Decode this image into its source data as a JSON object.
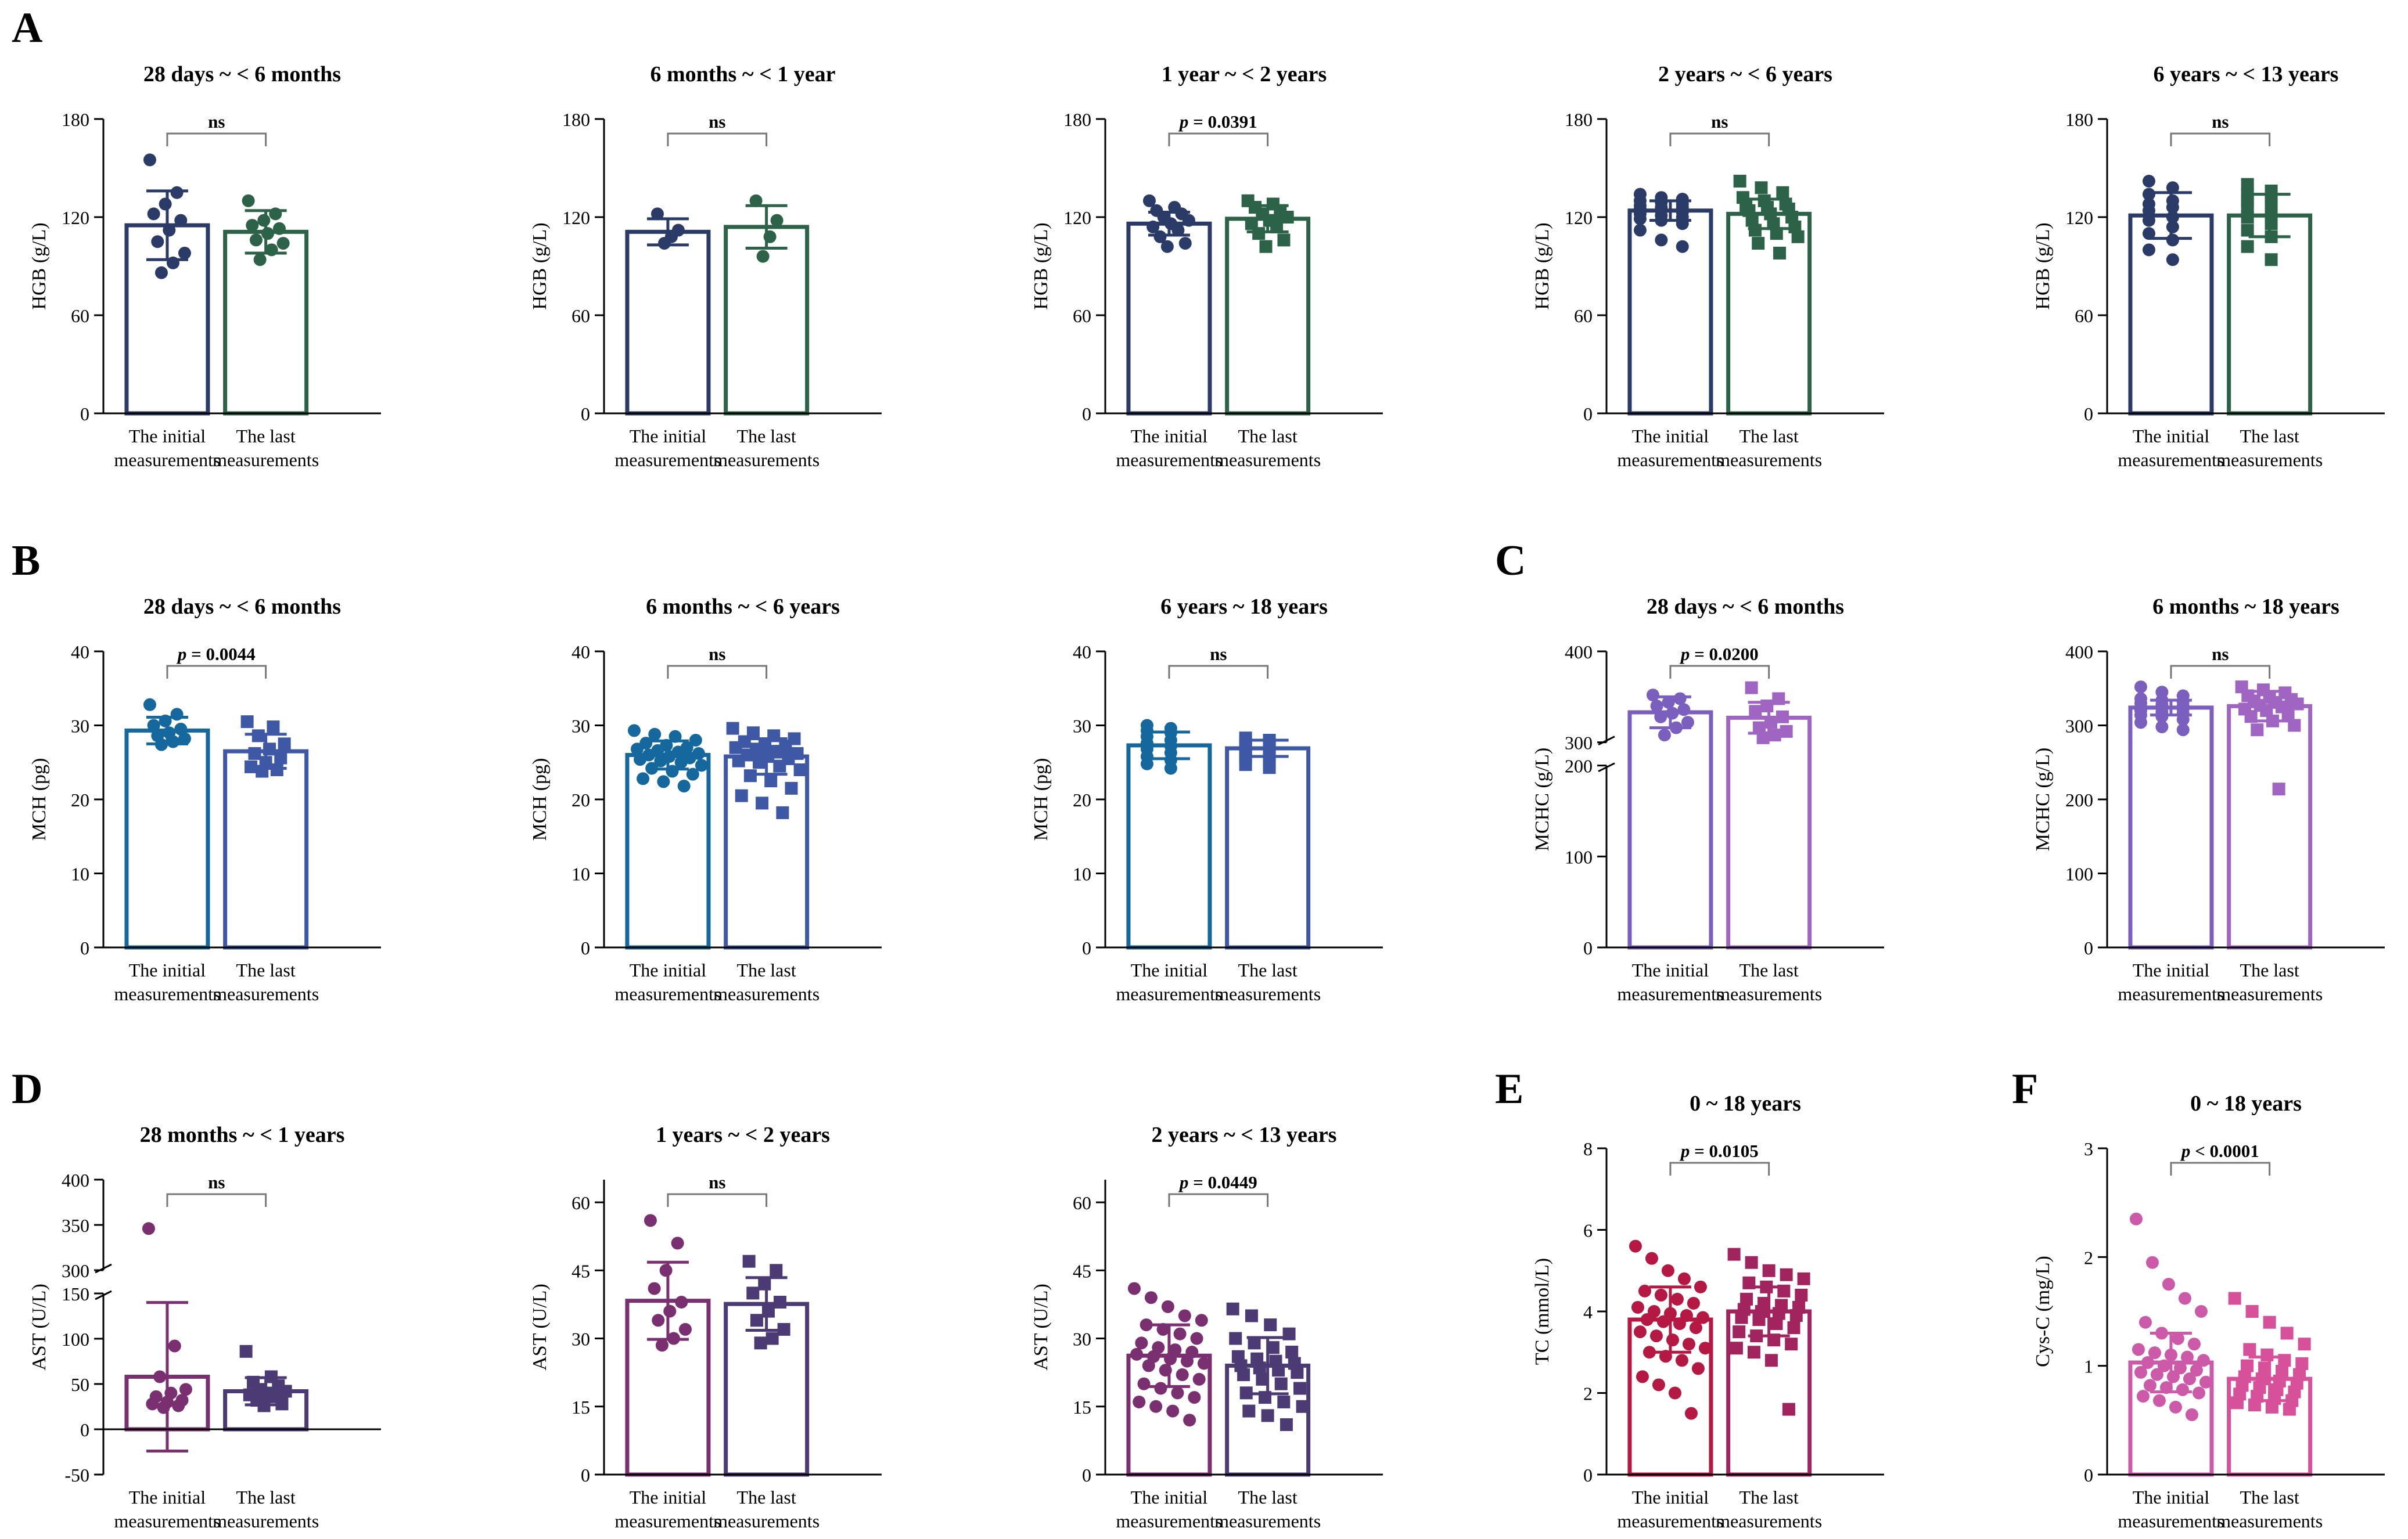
{
  "figure": {
    "xtick_line1": [
      "The initial",
      "The last"
    ],
    "xtick_line2": [
      "measurements",
      "measurements"
    ]
  },
  "chart_data": [
    {
      "panel_letter": "A",
      "type": "bar",
      "title": "28 days ~ < 6 months",
      "ylabel": "HGB (g/L)",
      "ylim": [
        0,
        180
      ],
      "yticks": [
        0,
        60,
        120,
        180
      ],
      "colors": [
        "#2b3b68",
        "#2c6348"
      ],
      "markers": [
        "circle",
        "circle"
      ],
      "series": [
        {
          "name": "The initial measurements",
          "mean": 115,
          "sd": 21,
          "points": [
            155,
            135,
            128,
            122,
            118,
            112,
            105,
            98,
            92,
            86
          ]
        },
        {
          "name": "The last measurements",
          "mean": 111,
          "sd": 13,
          "points": [
            130,
            122,
            118,
            115,
            113,
            110,
            106,
            104,
            100,
            94
          ]
        }
      ],
      "significance": "ns"
    },
    {
      "type": "bar",
      "title": "6 months ~ < 1 year",
      "ylabel": "HGB (g/L)",
      "ylim": [
        0,
        180
      ],
      "yticks": [
        0,
        60,
        120,
        180
      ],
      "colors": [
        "#2b3b68",
        "#2c6348"
      ],
      "markers": [
        "circle",
        "circle"
      ],
      "series": [
        {
          "name": "The initial measurements",
          "mean": 111,
          "sd": 8,
          "points": [
            122,
            112,
            108,
            104
          ]
        },
        {
          "name": "The last measurements",
          "mean": 114,
          "sd": 13,
          "points": [
            130,
            118,
            108,
            96
          ]
        }
      ],
      "significance": "ns"
    },
    {
      "type": "bar",
      "title": "1 year ~ < 2 years",
      "ylabel": "HGB (g/L)",
      "ylim": [
        0,
        180
      ],
      "yticks": [
        0,
        60,
        120,
        180
      ],
      "colors": [
        "#2b3b68",
        "#2c6348"
      ],
      "markers": [
        "circle",
        "square"
      ],
      "series": [
        {
          "name": "The initial measurements",
          "mean": 116,
          "sd": 7,
          "points": [
            130,
            126,
            124,
            122,
            120,
            118,
            116,
            114,
            112,
            108,
            104,
            102
          ]
        },
        {
          "name": "The last measurements",
          "mean": 119,
          "sd": 8,
          "points": [
            130,
            128,
            126,
            124,
            122,
            120,
            118,
            116,
            114,
            110,
            106,
            102
          ]
        }
      ],
      "significance": "p = 0.0391"
    },
    {
      "type": "bar",
      "title": "2 years ~ < 6 years",
      "ylabel": "HGB (g/L)",
      "ylim": [
        0,
        180
      ],
      "yticks": [
        0,
        60,
        120,
        180
      ],
      "colors": [
        "#2b3b68",
        "#2c6348"
      ],
      "markers": [
        "circle",
        "square"
      ],
      "series": [
        {
          "name": "The initial measurements",
          "mean": 124,
          "sd": 6,
          "points": [
            134,
            132,
            131,
            130,
            129,
            128,
            127,
            126,
            126,
            125,
            124,
            123,
            122,
            121,
            120,
            119,
            118,
            116,
            112,
            106,
            102
          ]
        },
        {
          "name": "The last measurements",
          "mean": 122,
          "sd": 9,
          "points": [
            142,
            138,
            135,
            132,
            130,
            128,
            127,
            126,
            125,
            124,
            122,
            120,
            118,
            116,
            114,
            112,
            110,
            108,
            104,
            98
          ]
        }
      ],
      "significance": "ns"
    },
    {
      "type": "bar",
      "title": "6 years ~ < 13 years",
      "ylabel": "HGB (g/L)",
      "ylim": [
        0,
        180
      ],
      "yticks": [
        0,
        60,
        120,
        180
      ],
      "colors": [
        "#2b3b68",
        "#2c6348"
      ],
      "markers": [
        "circle",
        "square"
      ],
      "series": [
        {
          "name": "The initial measurements",
          "mean": 121,
          "sd": 14,
          "points": [
            142,
            138,
            134,
            130,
            128,
            126,
            124,
            120,
            118,
            114,
            110,
            106,
            100,
            94
          ]
        },
        {
          "name": "The last measurements",
          "mean": 121,
          "sd": 13,
          "points": [
            140,
            136,
            134,
            132,
            130,
            128,
            126,
            122,
            120,
            116,
            112,
            108,
            102,
            94
          ]
        }
      ],
      "significance": "ns"
    },
    {
      "panel_letter": "B",
      "type": "bar",
      "title": "28 days ~ < 6 months",
      "ylabel": "MCH (pg)",
      "ylim": [
        0,
        40
      ],
      "yticks": [
        0,
        10,
        20,
        30,
        40
      ],
      "colors": [
        "#14689e",
        "#3f58a6"
      ],
      "markers": [
        "circle",
        "square"
      ],
      "series": [
        {
          "name": "The initial measurements",
          "mean": 29.3,
          "sd": 1.8,
          "points": [
            32.8,
            31.5,
            30.6,
            30,
            29.5,
            29,
            28.6,
            28.2,
            27.8,
            27.4
          ]
        },
        {
          "name": "The last measurements",
          "mean": 26.5,
          "sd": 2.3,
          "points": [
            30.5,
            29.8,
            28.6,
            27.5,
            26.8,
            26.2,
            25.6,
            25,
            24.4,
            24,
            23.8
          ]
        }
      ],
      "significance": "p = 0.0044"
    },
    {
      "type": "bar",
      "title": "6 months ~ < 6 years",
      "ylabel": "MCH (pg)",
      "ylim": [
        0,
        40
      ],
      "yticks": [
        0,
        10,
        20,
        30,
        40
      ],
      "colors": [
        "#14689e",
        "#3f58a6"
      ],
      "markers": [
        "circle",
        "square"
      ],
      "series": [
        {
          "name": "The initial measurements",
          "mean": 26.0,
          "sd": 1.9,
          "points": [
            29.3,
            28.8,
            28.5,
            28,
            27.6,
            27.3,
            27,
            26.8,
            26.6,
            26.4,
            26.2,
            26,
            25.8,
            25.6,
            25.4,
            25.2,
            25,
            24.6,
            24.2,
            23.8,
            23.4,
            22.8,
            22.4,
            21.8
          ]
        },
        {
          "name": "The last measurements",
          "mean": 25.8,
          "sd": 2.4,
          "points": [
            29.6,
            29,
            28.6,
            28.2,
            27.8,
            27.5,
            27.2,
            27,
            26.8,
            26.5,
            26.2,
            26,
            25.8,
            25.5,
            25.2,
            25,
            24.5,
            24,
            23.2,
            22.5,
            21.5,
            20.5,
            19.5,
            18.2
          ]
        }
      ],
      "significance": "ns"
    },
    {
      "type": "bar",
      "title": "6 years ~ 18 years",
      "ylabel": "MCH (pg)",
      "ylim": [
        0,
        40
      ],
      "yticks": [
        0,
        10,
        20,
        30,
        40
      ],
      "colors": [
        "#14689e",
        "#3f58a6"
      ],
      "markers": [
        "circle",
        "square"
      ],
      "series": [
        {
          "name": "The initial measurements",
          "mean": 27.3,
          "sd": 1.8,
          "points": [
            30,
            29.6,
            29.3,
            29,
            28.5,
            28,
            27.6,
            27.2,
            26.8,
            26.3,
            25.8,
            25.3,
            24.8,
            24.2
          ]
        },
        {
          "name": "The last measurements",
          "mean": 26.9,
          "sd": 1.1,
          "points": [
            28.3,
            28,
            27.8,
            27.5,
            27.3,
            27.1,
            26.9,
            26.7,
            26.4,
            26,
            25.6,
            25.2,
            24.7,
            24.3
          ]
        }
      ],
      "significance": "ns"
    },
    {
      "panel_letter": "C",
      "type": "bar",
      "title": "28 days ~ < 6 months",
      "ylabel": "MCHC (g/L)",
      "ylim": [
        0,
        400
      ],
      "ytick_labels": [
        "0",
        "100",
        "200",
        "300",
        "400"
      ],
      "axis_break": {
        "data": [
          200,
          300
        ],
        "ticks": [
          0,
          100,
          200,
          300,
          400
        ]
      },
      "colors": [
        "#7a5fbf",
        "#a064c2"
      ],
      "markers": [
        "circle",
        "square"
      ],
      "series": [
        {
          "name": "The initial measurements",
          "mean": 333,
          "sd": 17,
          "points": [
            352,
            348,
            344,
            340,
            336,
            332,
            328,
            322,
            316,
            308
          ]
        },
        {
          "name": "The last measurements",
          "mean": 327,
          "sd": 17,
          "points": [
            360,
            348,
            340,
            334,
            328,
            322,
            316,
            312,
            308,
            305
          ]
        }
      ],
      "significance": "p = 0.0200"
    },
    {
      "type": "bar",
      "title": "6 months ~ 18 years",
      "ylabel": "MCHC (g/L)",
      "ylim": [
        0,
        400
      ],
      "yticks": [
        0,
        100,
        200,
        300,
        400
      ],
      "colors": [
        "#7a5fbf",
        "#a064c2"
      ],
      "markers": [
        "circle",
        "square"
      ],
      "series": [
        {
          "name": "The initial measurements",
          "mean": 324,
          "sd": 10,
          "points": [
            352,
            345,
            340,
            336,
            334,
            332,
            330,
            328,
            326,
            325,
            324,
            322,
            320,
            318,
            316,
            314,
            312,
            308,
            304,
            298,
            294
          ]
        },
        {
          "name": "The last measurements",
          "mean": 326,
          "sd": 20,
          "points": [
            352,
            348,
            344,
            340,
            338,
            335,
            333,
            331,
            329,
            327,
            325,
            322,
            320,
            316,
            312,
            306,
            300,
            294,
            214
          ]
        }
      ],
      "significance": "ns"
    },
    {
      "panel_letter": "D",
      "type": "bar",
      "title": "28 months ~ < 1 years",
      "ylabel": "AST (U/L)",
      "ylim": [
        -50,
        400
      ],
      "ytick_labels": [
        "-50",
        "0",
        "50",
        "100",
        "150",
        "300",
        "350",
        "400"
      ],
      "axis_break": {
        "data": [
          150,
          300
        ],
        "ticks": [
          -50,
          0,
          50,
          100,
          150,
          300,
          350,
          400
        ]
      },
      "colors": [
        "#7a2f70",
        "#4c3a74"
      ],
      "markers": [
        "circle",
        "square"
      ],
      "series": [
        {
          "name": "The initial measurements",
          "mean": 58,
          "sd": 82,
          "points": [
            346,
            92,
            58,
            44,
            40,
            36,
            32,
            30,
            28,
            26,
            24
          ]
        },
        {
          "name": "The last measurements",
          "mean": 42,
          "sd": 15,
          "points": [
            86,
            58,
            52,
            48,
            44,
            42,
            40,
            38,
            36,
            32,
            28,
            26
          ]
        }
      ],
      "significance": "ns"
    },
    {
      "type": "bar",
      "title": "1 years ~ < 2 years",
      "ylabel": "AST (U/L)",
      "ylim": [
        0,
        65
      ],
      "yticks": [
        0,
        15,
        30,
        45,
        60
      ],
      "colors": [
        "#7a2f70",
        "#4c3a74"
      ],
      "markers": [
        "circle",
        "square"
      ],
      "series": [
        {
          "name": "The initial measurements",
          "mean": 38.3,
          "sd": 8.5,
          "points": [
            56,
            51,
            45,
            41,
            38,
            36,
            34,
            32,
            30,
            28.5
          ]
        },
        {
          "name": "The last measurements",
          "mean": 37.6,
          "sd": 5.8,
          "points": [
            47,
            45,
            42,
            40,
            38,
            36,
            34,
            32,
            30,
            29
          ]
        }
      ],
      "significance": "ns"
    },
    {
      "type": "bar",
      "title": "2 years ~ < 13 years",
      "ylabel": "AST (U/L)",
      "ylim": [
        0,
        65
      ],
      "yticks": [
        0,
        15,
        30,
        45,
        60
      ],
      "colors": [
        "#7a2f70",
        "#4c3a74"
      ],
      "markers": [
        "circle",
        "square"
      ],
      "series": [
        {
          "name": "The initial measurements",
          "mean": 26.2,
          "sd": 6.8,
          "points": [
            41,
            39,
            37,
            35,
            34,
            33,
            32,
            31,
            30,
            29,
            28,
            27.5,
            27,
            26.5,
            26,
            25.5,
            25,
            24.5,
            24,
            23,
            22,
            21,
            20,
            19,
            18,
            17,
            16,
            15,
            14,
            12
          ]
        },
        {
          "name": "The last measurements",
          "mean": 24.0,
          "sd": 6.2,
          "points": [
            36.5,
            35,
            33,
            31,
            30,
            29,
            28,
            27,
            26,
            25.5,
            25,
            24.5,
            24,
            23.5,
            23,
            22.5,
            22,
            21,
            20,
            19,
            18,
            17,
            16,
            15,
            14,
            13,
            11
          ]
        }
      ],
      "significance": "p = 0.0449"
    },
    {
      "panel_letter": "E",
      "type": "bar",
      "title": "0 ~ 18 years",
      "ylabel": "TC (mmol/L)",
      "ylim": [
        0,
        8
      ],
      "yticks": [
        0,
        2,
        4,
        6,
        8
      ],
      "colors": [
        "#b51843",
        "#a1245f"
      ],
      "markers": [
        "circle",
        "square"
      ],
      "series": [
        {
          "name": "The initial measurements",
          "mean": 3.8,
          "sd": 0.8,
          "points": [
            5.6,
            5.3,
            5.0,
            4.8,
            4.6,
            4.5,
            4.4,
            4.3,
            4.2,
            4.1,
            4.0,
            3.95,
            3.9,
            3.85,
            3.8,
            3.75,
            3.7,
            3.6,
            3.5,
            3.4,
            3.3,
            3.2,
            3.1,
            3.0,
            2.9,
            2.8,
            2.6,
            2.4,
            2.2,
            2.0,
            1.5
          ]
        },
        {
          "name": "The last measurements",
          "mean": 4.0,
          "sd": 0.6,
          "points": [
            5.4,
            5.2,
            5.0,
            4.9,
            4.8,
            4.7,
            4.6,
            4.5,
            4.4,
            4.3,
            4.2,
            4.15,
            4.1,
            4.05,
            4.0,
            3.95,
            3.9,
            3.85,
            3.8,
            3.7,
            3.6,
            3.5,
            3.4,
            3.3,
            3.2,
            3.1,
            3.0,
            2.8,
            1.6
          ]
        }
      ],
      "significance": "p = 0.0105"
    },
    {
      "panel_letter": "F",
      "type": "bar",
      "title": "0 ~ 18 years",
      "ylabel": "Cys-C (mg/L)",
      "ylim": [
        0,
        3
      ],
      "yticks": [
        0,
        1,
        2,
        3
      ],
      "colors": [
        "#cc5aa8",
        "#d6509a"
      ],
      "markers": [
        "circle",
        "square"
      ],
      "series": [
        {
          "name": "The initial measurements",
          "mean": 1.03,
          "sd": 0.27,
          "points": [
            2.35,
            1.95,
            1.75,
            1.62,
            1.5,
            1.4,
            1.3,
            1.25,
            1.2,
            1.15,
            1.12,
            1.1,
            1.08,
            1.05,
            1.03,
            1.0,
            0.98,
            0.96,
            0.94,
            0.92,
            0.9,
            0.88,
            0.85,
            0.82,
            0.8,
            0.78,
            0.75,
            0.72,
            0.68,
            0.62,
            0.55
          ]
        },
        {
          "name": "The last measurements",
          "mean": 0.88,
          "sd": 0.2,
          "points": [
            1.62,
            1.5,
            1.4,
            1.3,
            1.2,
            1.15,
            1.1,
            1.05,
            1.02,
            1.0,
            0.98,
            0.95,
            0.92,
            0.9,
            0.88,
            0.86,
            0.84,
            0.82,
            0.8,
            0.78,
            0.76,
            0.74,
            0.72,
            0.7,
            0.68,
            0.66,
            0.64,
            0.62,
            0.6
          ]
        }
      ],
      "significance": "p < 0.0001"
    }
  ]
}
